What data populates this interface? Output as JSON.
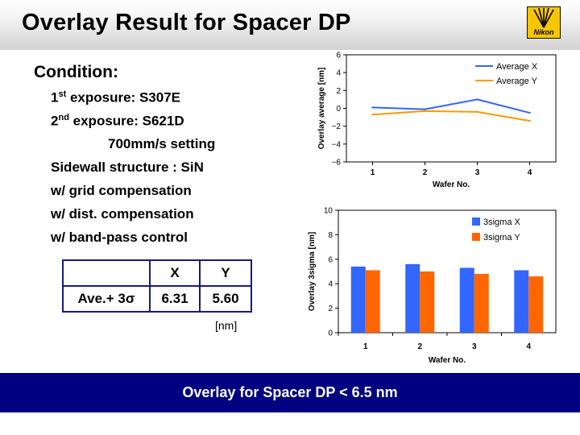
{
  "slide": {
    "title": "Overlay Result for Spacer DP",
    "logo_text": "Nikon"
  },
  "condition": {
    "heading": "Condition:",
    "first_exposure": {
      "num": "1",
      "sup": "st",
      "rest": " exposure: S307E"
    },
    "second_exposure": {
      "num": "2",
      "sup": "nd",
      "rest": " exposure: S621D"
    },
    "setting": "700mm/s setting",
    "sidewall": "Sidewall structure : SiN",
    "grid": "w/ grid compensation",
    "dist": "w/ dist. compensation",
    "bandpass": "w/ band-pass control"
  },
  "table": {
    "col_x": "X",
    "col_y": "Y",
    "row_label": "Ave.+ 3σ",
    "x_value": "6.31",
    "y_value": "5.60",
    "unit": "[nm]"
  },
  "footer": {
    "text": "Overlay for Spacer DP < 6.5 nm",
    "band_color": "#000080"
  },
  "chart_data": [
    {
      "type": "line",
      "x": [
        "1",
        "2",
        "3",
        "4"
      ],
      "series": [
        {
          "name": "Average X",
          "color": "#3366ff",
          "values": [
            0.1,
            -0.1,
            1.0,
            -0.5
          ]
        },
        {
          "name": "Average Y",
          "color": "#ff9900",
          "values": [
            -0.7,
            -0.3,
            -0.4,
            -1.4
          ]
        }
      ],
      "xlabel": "Wafer No.",
      "ylabel": "Overlay average [nm]",
      "ylim": [
        -6,
        6
      ],
      "yticks": [
        "−6",
        "−4",
        "−2",
        "0",
        "2",
        "4",
        "6"
      ],
      "grid": false,
      "legend": "top-right"
    },
    {
      "type": "bar",
      "categories": [
        "1",
        "2",
        "3",
        "4"
      ],
      "series": [
        {
          "name": "3sigma X",
          "color": "#3366ff",
          "values": [
            5.4,
            5.6,
            5.3,
            5.1
          ]
        },
        {
          "name": "3sigma Y",
          "color": "#ff6600",
          "values": [
            5.1,
            5.0,
            4.8,
            4.6
          ]
        }
      ],
      "xlabel": "Wafer No.",
      "ylabel": "Overlay 3sigma [nm]",
      "ylim": [
        0,
        10
      ],
      "yticks": [
        "0",
        "2",
        "4",
        "6",
        "8",
        "10"
      ],
      "grid": false,
      "legend": "top-right"
    }
  ]
}
